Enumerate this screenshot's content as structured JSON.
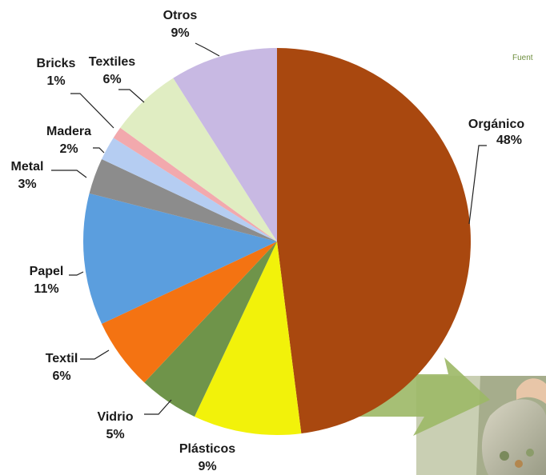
{
  "source_text": "Fuent",
  "chart_data": {
    "type": "pie",
    "title": "",
    "start_angle_deg": 0,
    "direction": "clockwise",
    "slices": [
      {
        "label": "Orgánico",
        "value": 48,
        "value_text": "48%",
        "color": "#a9480f"
      },
      {
        "label": "Plásticos",
        "value": 9,
        "value_text": "9%",
        "color": "#f2f20a"
      },
      {
        "label": "Vidrio",
        "value": 5,
        "value_text": "5%",
        "color": "#6f944a"
      },
      {
        "label": "Textil",
        "value": 6,
        "value_text": "6%",
        "color": "#f47312"
      },
      {
        "label": "Papel",
        "value": 11,
        "value_text": "11%",
        "color": "#5b9ede"
      },
      {
        "label": "Metal",
        "value": 3,
        "value_text": "3%",
        "color": "#8c8c8c"
      },
      {
        "label": "Madera",
        "value": 2,
        "value_text": "2%",
        "color": "#b5cdf2"
      },
      {
        "label": "Bricks",
        "value": 1,
        "value_text": "1%",
        "color": "#f2a9ad"
      },
      {
        "label": "Textiles",
        "value": 6,
        "value_text": "6%",
        "color": "#e0edc2"
      },
      {
        "label": "Otros",
        "value": 9,
        "value_text": "9%",
        "color": "#c8b9e3"
      }
    ]
  }
}
